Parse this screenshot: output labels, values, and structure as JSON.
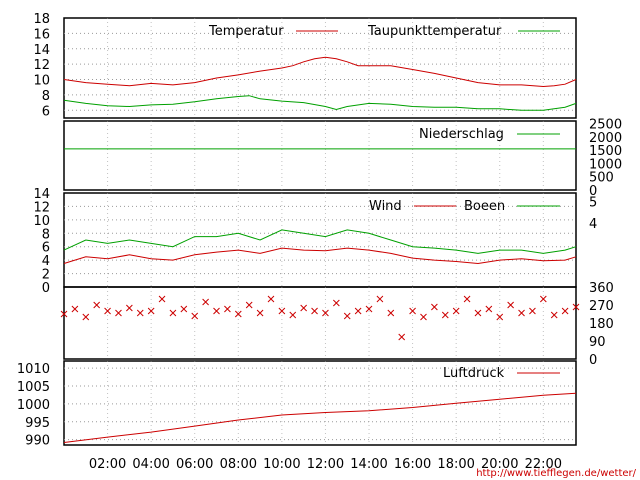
{
  "source_url": "http://www.tiefflegen.de/wetter/",
  "colors": {
    "red": "#cc0000",
    "green": "#00a000",
    "grid": "#9a9a9a",
    "frame": "#000000"
  },
  "x_axis": {
    "hours": [
      "02:00",
      "04:00",
      "06:00",
      "08:00",
      "10:00",
      "12:00",
      "14:00",
      "16:00",
      "18:00",
      "20:00",
      "22:00"
    ],
    "start_hour": 0,
    "end_hour": 23.5
  },
  "chart_data": [
    {
      "id": "temperature",
      "type": "line",
      "x_unit": "hour of day",
      "ylim": [
        5,
        18
      ],
      "left_ticks": [
        "6",
        "8",
        "10",
        "12",
        "14",
        "16",
        "18"
      ],
      "grid": true,
      "series": [
        {
          "name": "Temperatur",
          "color": "red",
          "x": [
            0,
            1,
            2,
            3,
            4,
            5,
            6,
            7,
            8,
            9,
            10,
            10.5,
            11,
            11.5,
            12,
            12.5,
            13,
            13.5,
            14,
            15,
            16,
            17,
            18,
            19,
            20,
            21,
            22,
            22.5,
            23,
            23.5
          ],
          "values": [
            10,
            9.6,
            9.4,
            9.2,
            9.5,
            9.3,
            9.6,
            10.2,
            10.6,
            11.1,
            11.5,
            11.8,
            12.3,
            12.7,
            12.9,
            12.7,
            12.3,
            11.8,
            11.8,
            11.8,
            11.3,
            10.8,
            10.2,
            9.6,
            9.3,
            9.3,
            9.1,
            9.2,
            9.4,
            10
          ]
        },
        {
          "name": "Taupunkttemperatur",
          "color": "green",
          "x": [
            0,
            1,
            2,
            3,
            4,
            5,
            6,
            7,
            8,
            8.5,
            9,
            10,
            11,
            12,
            12.5,
            13,
            14,
            15,
            16,
            17,
            18,
            19,
            20,
            21,
            22,
            23,
            23.5
          ],
          "values": [
            7.3,
            6.9,
            6.6,
            6.5,
            6.7,
            6.8,
            7.1,
            7.5,
            7.8,
            7.9,
            7.5,
            7.2,
            7,
            6.5,
            6.1,
            6.5,
            6.9,
            6.8,
            6.5,
            6.4,
            6.4,
            6.2,
            6.2,
            6,
            6,
            6.4,
            6.9
          ]
        }
      ]
    },
    {
      "id": "precipitation",
      "type": "line",
      "x_unit": "hour of day",
      "ylim": [
        0,
        2600
      ],
      "right_ticks": [
        "0",
        "500",
        "1000",
        "1500",
        "2000",
        "2500"
      ],
      "series": [
        {
          "name": "Niederschlag",
          "color": "green",
          "x": [
            0,
            23.5
          ],
          "values": [
            1550,
            1550
          ]
        }
      ]
    },
    {
      "id": "wind",
      "type": "line",
      "x_unit": "hour of day",
      "ylim": [
        0,
        14
      ],
      "left_ticks": [
        "0",
        "2",
        "4",
        "6",
        "8",
        "10",
        "12",
        "14"
      ],
      "right_ticks": [
        "4",
        "5"
      ],
      "grid": true,
      "series": [
        {
          "name": "Wind",
          "color": "red",
          "x": [
            0,
            1,
            2,
            3,
            4,
            5,
            6,
            7,
            8,
            9,
            10,
            11,
            12,
            13,
            14,
            15,
            16,
            17,
            18,
            19,
            20,
            21,
            22,
            23,
            23.5
          ],
          "values": [
            3.5,
            4.5,
            4.2,
            4.8,
            4.2,
            4,
            4.8,
            5.2,
            5.5,
            5,
            5.8,
            5.5,
            5.4,
            5.8,
            5.5,
            5,
            4.3,
            4,
            3.8,
            3.5,
            4,
            4.2,
            3.9,
            4,
            4.5
          ]
        },
        {
          "name": "Boeen",
          "color": "green",
          "x": [
            0,
            1,
            2,
            3,
            4,
            5,
            6,
            7,
            8,
            9,
            10,
            11,
            12,
            13,
            14,
            15,
            16,
            17,
            18,
            19,
            20,
            21,
            22,
            23,
            23.5
          ],
          "values": [
            5.5,
            7,
            6.5,
            7,
            6.5,
            6,
            7.5,
            7.5,
            8,
            7,
            8.5,
            8,
            7.5,
            8.5,
            8,
            7,
            6,
            5.8,
            5.5,
            5,
            5.5,
            5.5,
            5,
            5.5,
            6
          ]
        }
      ]
    },
    {
      "id": "wind-direction",
      "type": "scatter",
      "x_unit": "hour of day",
      "ylim": [
        0,
        360
      ],
      "right_ticks": [
        "0",
        "90",
        "180",
        "270",
        "360"
      ],
      "series": [
        {
          "color": "red",
          "marker": "x",
          "x": [
            0,
            0.5,
            1,
            1.5,
            2,
            2.5,
            3,
            3.5,
            4,
            4.5,
            5,
            5.5,
            6,
            6.5,
            7,
            7.5,
            8,
            8.5,
            9,
            9.5,
            10,
            10.5,
            11,
            11.5,
            12,
            12.5,
            13,
            13.5,
            14,
            14.5,
            15,
            15.5,
            16,
            16.5,
            17,
            17.5,
            18,
            18.5,
            19,
            19.5,
            20,
            20.5,
            21,
            21.5,
            22,
            22.5,
            23,
            23.5
          ],
          "values": [
            225,
            250,
            210,
            270,
            240,
            230,
            255,
            230,
            240,
            300,
            230,
            250,
            215,
            285,
            240,
            250,
            225,
            270,
            230,
            300,
            240,
            220,
            255,
            240,
            230,
            280,
            215,
            240,
            250,
            300,
            230,
            110,
            240,
            210,
            260,
            220,
            240,
            300,
            230,
            250,
            210,
            270,
            230,
            240,
            300,
            220,
            240,
            260
          ]
        }
      ]
    },
    {
      "id": "pressure",
      "type": "line",
      "x_unit": "hour of day",
      "ylim": [
        988.5,
        1012
      ],
      "left_ticks": [
        "990",
        "995",
        "1000",
        "1005",
        "1010"
      ],
      "grid": true,
      "series": [
        {
          "name": "Luftdruck",
          "color": "red",
          "x": [
            0,
            2,
            4,
            6,
            8,
            10,
            12,
            14,
            16,
            18,
            20,
            22,
            23.5
          ],
          "values": [
            989.2,
            990.7,
            992.1,
            993.8,
            995.5,
            996.9,
            997.6,
            998.1,
            999,
            1000.2,
            1001.3,
            1002.4,
            1003
          ]
        }
      ]
    }
  ]
}
